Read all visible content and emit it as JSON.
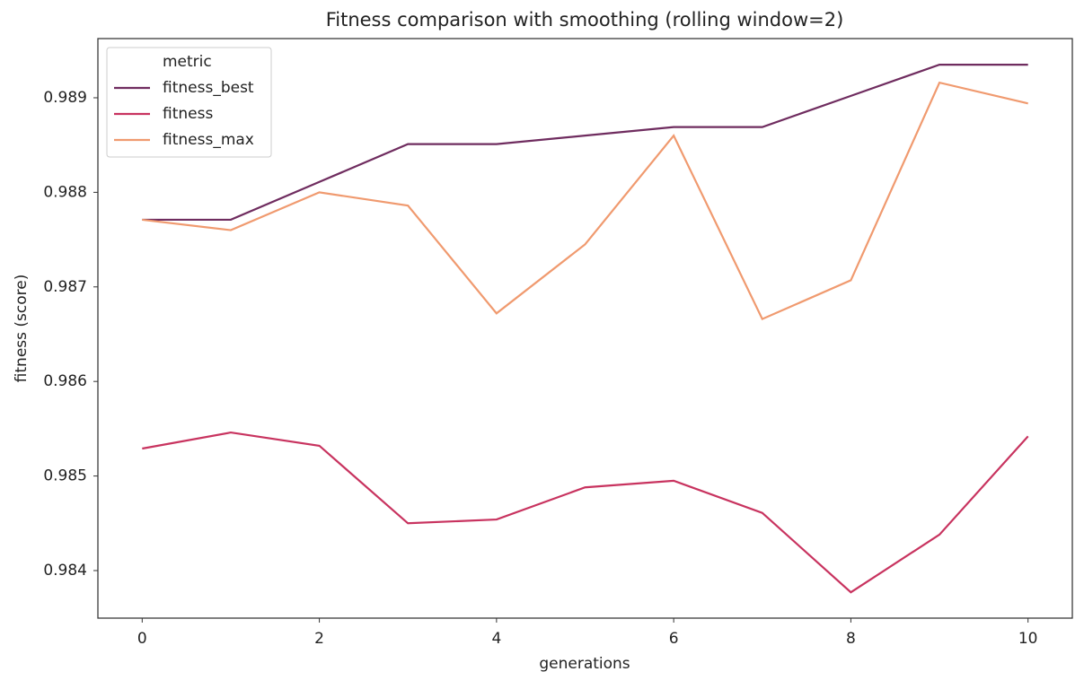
{
  "chart_data": {
    "type": "line",
    "title": "Fitness comparison with smoothing (rolling window=2)",
    "x_label": "generations",
    "y_label": "fitness (score)",
    "x": [
      0,
      1,
      2,
      3,
      4,
      5,
      6,
      7,
      8,
      9,
      10
    ],
    "series": [
      {
        "name": "fitness_best",
        "color": "#6f2c5f",
        "values": [
          0.98771,
          0.98771,
          0.98811,
          0.98851,
          0.98851,
          0.9886,
          0.98869,
          0.98869,
          0.98902,
          0.98935,
          0.98935
        ]
      },
      {
        "name": "fitness",
        "color": "#c8335f",
        "values": [
          0.98529,
          0.98546,
          0.98532,
          0.9845,
          0.98454,
          0.98488,
          0.98495,
          0.98461,
          0.98377,
          0.98438,
          0.98542
        ]
      },
      {
        "name": "fitness_max",
        "color": "#f09a6f",
        "values": [
          0.98771,
          0.9876,
          0.988,
          0.98786,
          0.98672,
          0.98745,
          0.9886,
          0.98666,
          0.98707,
          0.98916,
          0.98894
        ]
      }
    ],
    "legend_title": "metric",
    "legend": "upper left",
    "xlim": [
      -0.5,
      10.5
    ],
    "xticks": [
      0,
      2,
      4,
      6,
      8,
      10
    ],
    "ylim": [
      0.983497,
      0.989626
    ],
    "yticks": [
      0.984,
      0.985,
      0.986,
      0.987,
      0.988,
      0.989
    ],
    "grid": false
  }
}
